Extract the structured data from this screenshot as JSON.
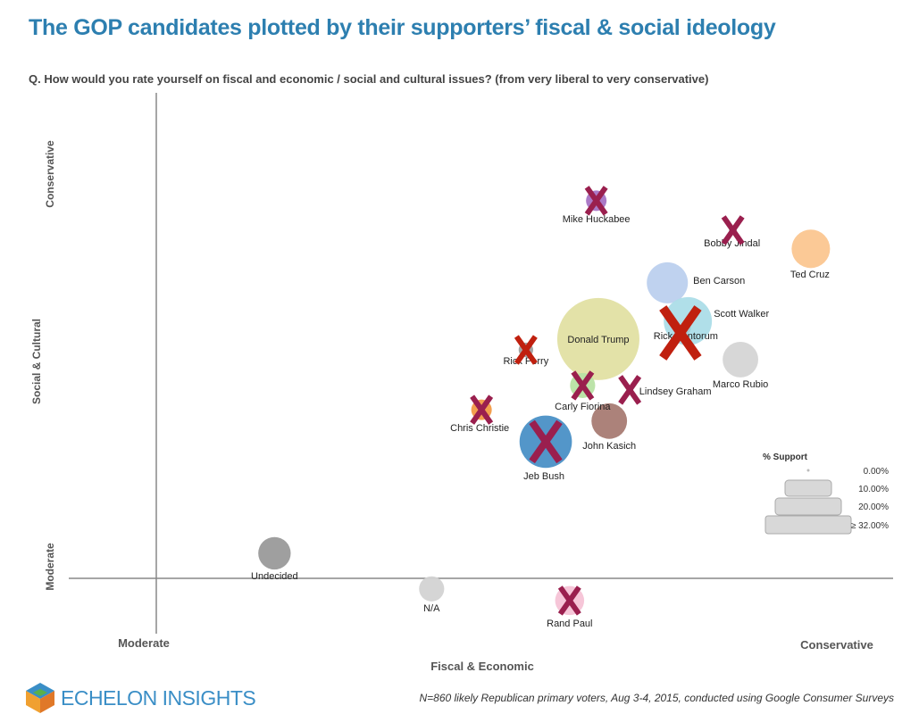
{
  "title": "The GOP candidates plotted by their supporters’ fiscal & social ideology",
  "question": "Q. How would you rate yourself on fiscal and economic / social and cultural issues? (from very liberal to very conservative)",
  "footnote": "N=860 likely Republican primary voters, Aug 3-4, 2015, conducted using Google Consumer Surveys",
  "logo_text": "ECHELON INSIGHTS",
  "chart_data": {
    "type": "scatter",
    "subtype": "bubble",
    "xlabel": "Fiscal & Economic",
    "ylabel": "Social & Cultural",
    "x_ticks": [
      "Moderate",
      "Conservative"
    ],
    "y_ticks": [
      "Moderate",
      "Conservative"
    ],
    "note": "x/y are relative ideology positions (0 = Moderate, 100 = Conservative) estimated from the axes; size = % support",
    "xlim": [
      -13,
      108
    ],
    "ylim": [
      -19,
      120
    ],
    "grid": false,
    "legend": {
      "title": "% Support",
      "entries": [
        "0.00%",
        "10.00%",
        "20.00%",
        "≥ 32.00%"
      ],
      "placement": "bottom-right"
    },
    "x_mark_colors": {
      "red": "#c0200f",
      "maroon": "#9a1f4e"
    },
    "points": [
      {
        "name": "Mike Huckabee",
        "x": 64.4,
        "y": 93.4,
        "support": 2,
        "color": "#a673c4",
        "crossed": "maroon"
      },
      {
        "name": "Bobby Jindal",
        "x": 84.4,
        "y": 86.1,
        "support": 0.3,
        "color": "#b0b0b0",
        "crossed": "maroon"
      },
      {
        "name": "Ted Cruz",
        "x": 95.8,
        "y": 81.5,
        "support": 7,
        "color": "#fbc690",
        "crossed": null
      },
      {
        "name": "Ben Carson",
        "x": 74.8,
        "y": 73.1,
        "support": 8,
        "color": "#bcd0ee",
        "crossed": null
      },
      {
        "name": "Scott Walker",
        "x": 77.8,
        "y": 63.6,
        "support": 11,
        "color": "#acdde8",
        "crossed": null
      },
      {
        "name": "Rick Santorum",
        "x": 77.5,
        "y": 61.8,
        "support": 0.5,
        "color": "#9ccfd8",
        "crossed": "red"
      },
      {
        "name": "Donald Trump",
        "x": 64.7,
        "y": 59.2,
        "support": 32,
        "color": "#e1e0a3",
        "crossed": null
      },
      {
        "name": "Rick Perry",
        "x": 54.1,
        "y": 56.5,
        "support": 1,
        "color": "#a0a0a0",
        "crossed": "red"
      },
      {
        "name": "Marco Rubio",
        "x": 85.5,
        "y": 54.1,
        "support": 6,
        "color": "#d5d5d5",
        "crossed": null
      },
      {
        "name": "Carly Fiorina",
        "x": 62.4,
        "y": 47.7,
        "support": 3,
        "color": "#b8e2a4",
        "crossed": "maroon"
      },
      {
        "name": "Lindsey Graham",
        "x": 69.3,
        "y": 46.6,
        "support": 0.2,
        "color": "#c8c8c8",
        "crossed": "maroon"
      },
      {
        "name": "Chris Christie",
        "x": 47.6,
        "y": 41.7,
        "support": 2,
        "color": "#f29a44",
        "crossed": "maroon"
      },
      {
        "name": "John Kasich",
        "x": 66.3,
        "y": 38.9,
        "support": 6,
        "color": "#a87b73",
        "crossed": null
      },
      {
        "name": "Jeb Bush",
        "x": 57.0,
        "y": 33.8,
        "support": 13,
        "color": "#4a90c6",
        "crossed": "maroon"
      },
      {
        "name": "Undecided",
        "x": 17.3,
        "y": 6.2,
        "support": 5,
        "color": "#9a9a9a",
        "crossed": null
      },
      {
        "name": "N/A",
        "x": 40.3,
        "y": -2.6,
        "support": 3,
        "color": "#d3d3d3",
        "crossed": null
      },
      {
        "name": "Rand Paul",
        "x": 60.5,
        "y": -5.5,
        "support": 4,
        "color": "#f5c3d6",
        "crossed": "maroon"
      }
    ]
  }
}
